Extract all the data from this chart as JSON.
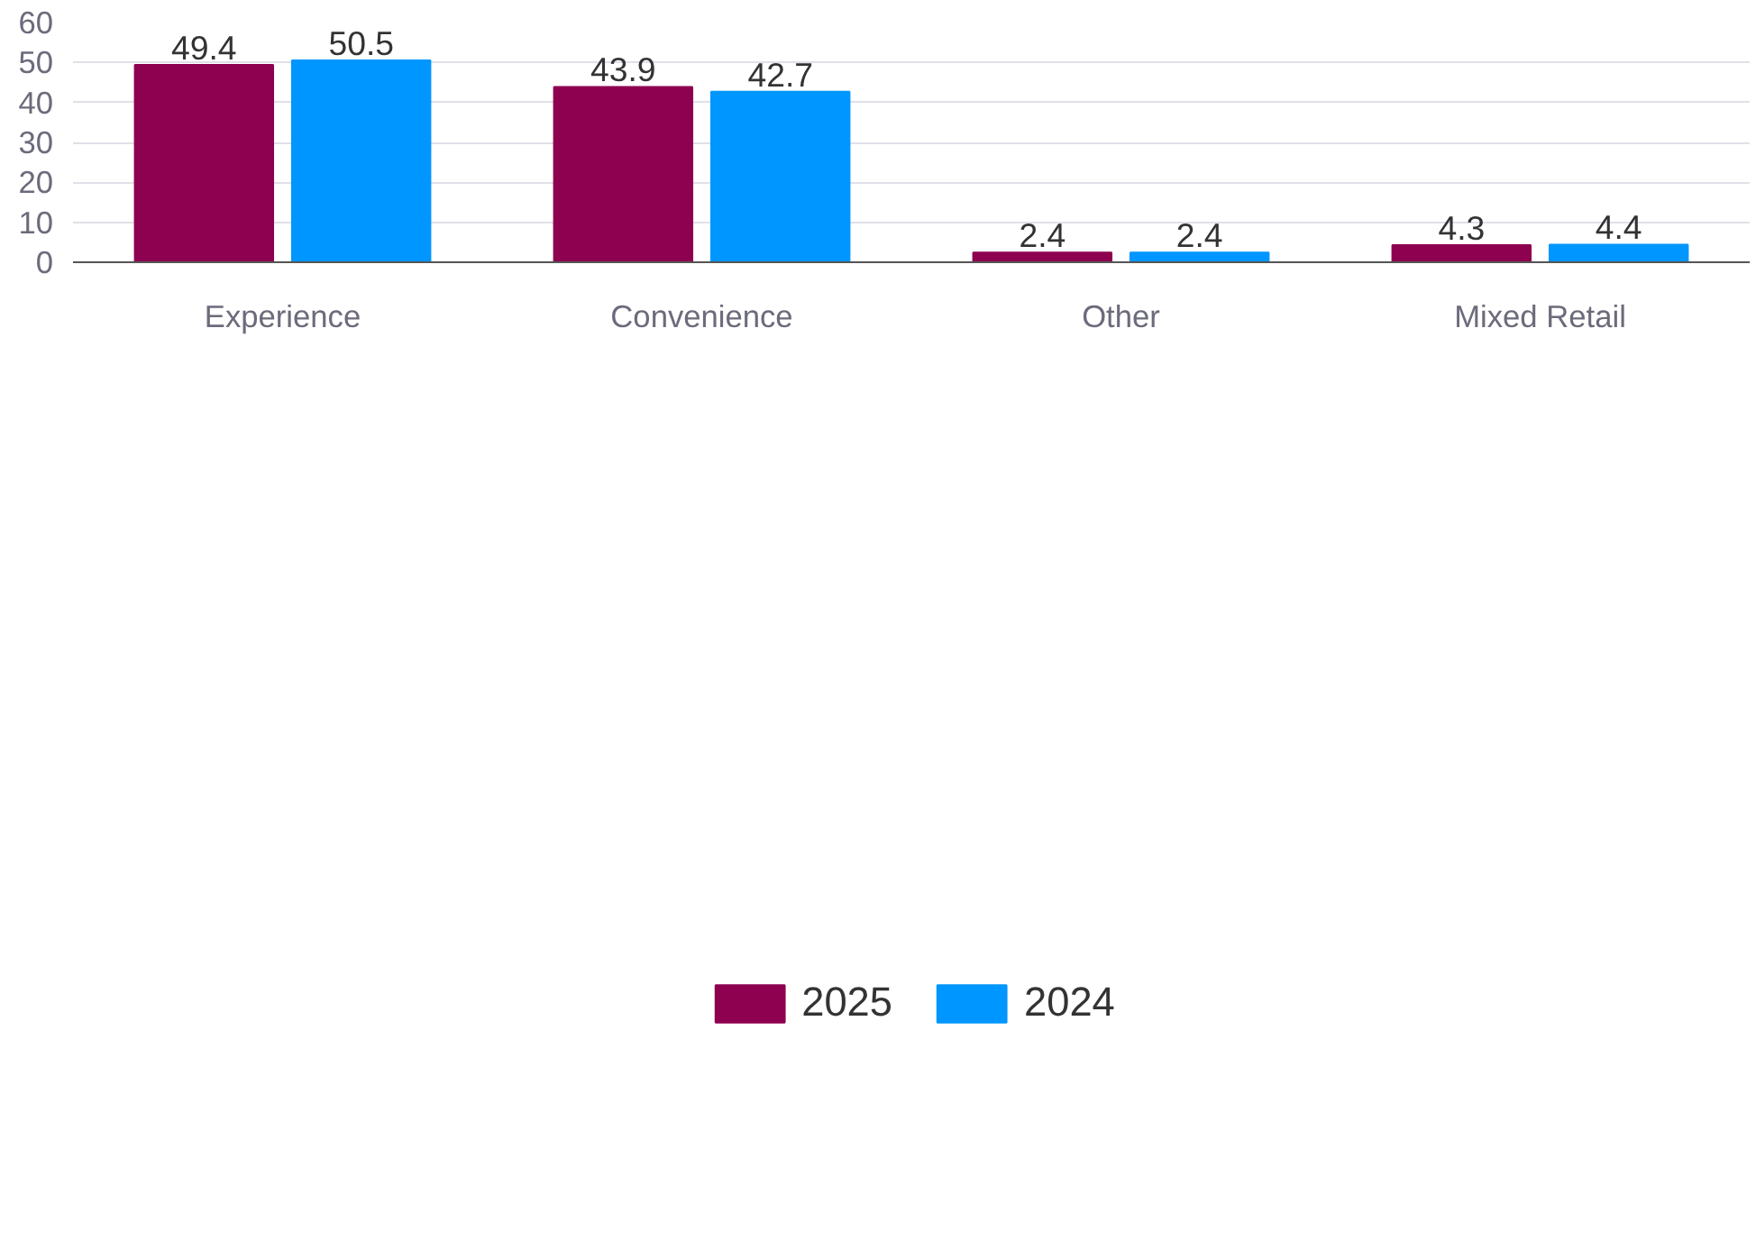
{
  "chart_data": {
    "type": "bar",
    "categories": [
      "Experience",
      "Convenience",
      "Other",
      "Mixed Retail"
    ],
    "series": [
      {
        "name": "2025",
        "color": "#8e0050",
        "values": [
          49.4,
          43.9,
          2.4,
          4.3
        ]
      },
      {
        "name": "2024",
        "color": "#0096ff",
        "values": [
          50.5,
          42.7,
          2.4,
          4.4
        ]
      }
    ],
    "ylim": [
      0,
      60
    ],
    "yticks": [
      0,
      10,
      20,
      30,
      40,
      50,
      60
    ],
    "grid": "y",
    "legend": "bottom",
    "data_labels": true
  }
}
